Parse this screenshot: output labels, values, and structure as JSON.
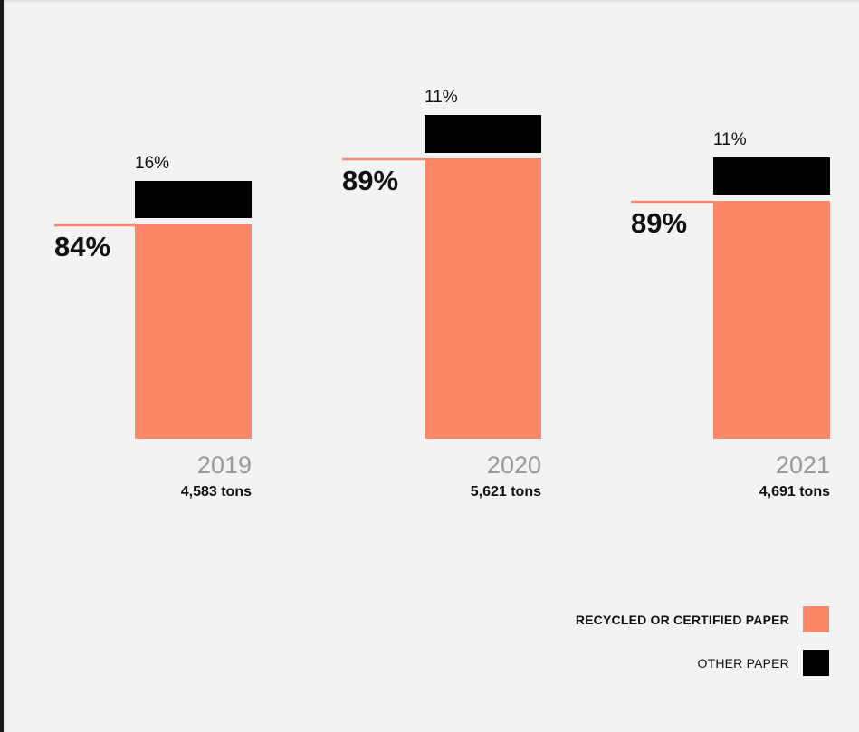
{
  "chart_data": {
    "type": "bar",
    "stacked": true,
    "categories": [
      "2019",
      "2020",
      "2021"
    ],
    "totals": [
      "4,583 tons",
      "5,621 tons",
      "4,691 tons"
    ],
    "series": [
      {
        "name": "RECYCLED OR CERTIFIED PAPER",
        "values": [
          84,
          89,
          89
        ],
        "labels": [
          "84%",
          "89%",
          "89%"
        ],
        "color": "#fd8769"
      },
      {
        "name": "OTHER PAPER",
        "values": [
          16,
          11,
          11
        ],
        "labels": [
          "16%",
          "11%",
          "11%"
        ],
        "color": "#000000"
      }
    ],
    "legend_position": "bottom-right"
  },
  "legend": {
    "recycled_label": "RECYCLED OR CERTIFIED PAPER",
    "other_label": "OTHER PAPER"
  },
  "colors": {
    "recycled": "#fd8769",
    "other": "#000000",
    "year_text": "#9a9a9a",
    "background": "#f3f3f3"
  }
}
